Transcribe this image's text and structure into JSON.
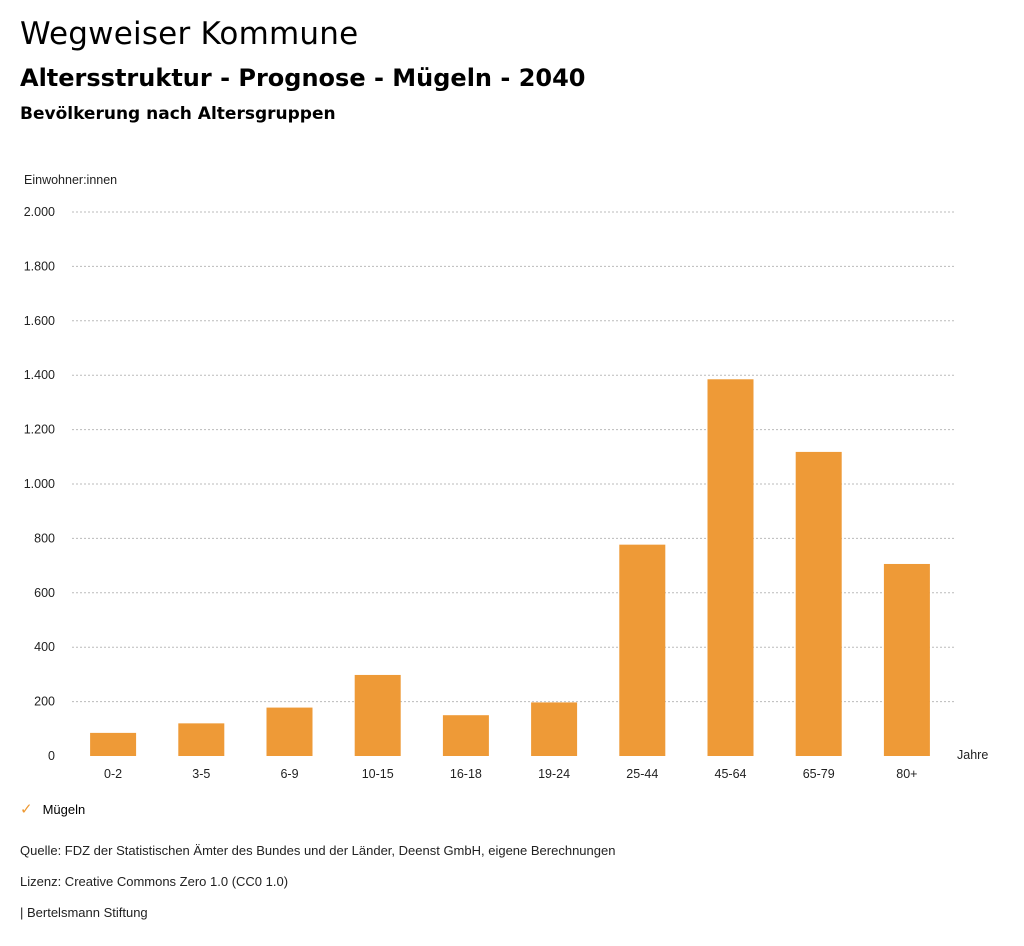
{
  "header": {
    "title": "Wegweiser Kommune",
    "subtitle": "Altersstruktur - Prognose - Mügeln - 2040",
    "chart_title": "Bevölkerung nach Altersgruppen"
  },
  "colors": {
    "bar": "#ee9a37",
    "grid": "#bbbbbb",
    "legend_check": "#ee9933"
  },
  "chart_data": {
    "type": "bar",
    "title": "Bevölkerung nach Altersgruppen",
    "ylabel": "Einwohner:innen",
    "xlabel": "Jahre",
    "ylim": [
      0,
      2000
    ],
    "y_ticks": [
      0,
      200,
      400,
      600,
      800,
      1000,
      1200,
      1400,
      1600,
      1800,
      2000
    ],
    "y_tick_labels": [
      "0",
      "200",
      "400",
      "600",
      "800",
      "1.000",
      "1.200",
      "1.400",
      "1.600",
      "1.800",
      "2.000"
    ],
    "categories": [
      "0-2",
      "3-5",
      "6-9",
      "10-15",
      "16-18",
      "19-24",
      "25-44",
      "45-64",
      "65-79",
      "80+"
    ],
    "series": [
      {
        "name": "Mügeln",
        "values": [
          85,
          120,
          178,
          298,
          150,
          197,
          777,
          1385,
          1118,
          706
        ]
      }
    ],
    "grid": true,
    "legend_position": "bottom-left"
  },
  "legend": {
    "check_icon": "check-icon",
    "label": "Mügeln"
  },
  "footer": {
    "source": "Quelle: FDZ der Statistischen Ämter des Bundes und der Länder, Deenst GmbH, eigene Berechnungen",
    "license": "Lizenz: Creative Commons Zero 1.0 (CC0 1.0)",
    "publisher": "| Bertelsmann Stiftung"
  }
}
